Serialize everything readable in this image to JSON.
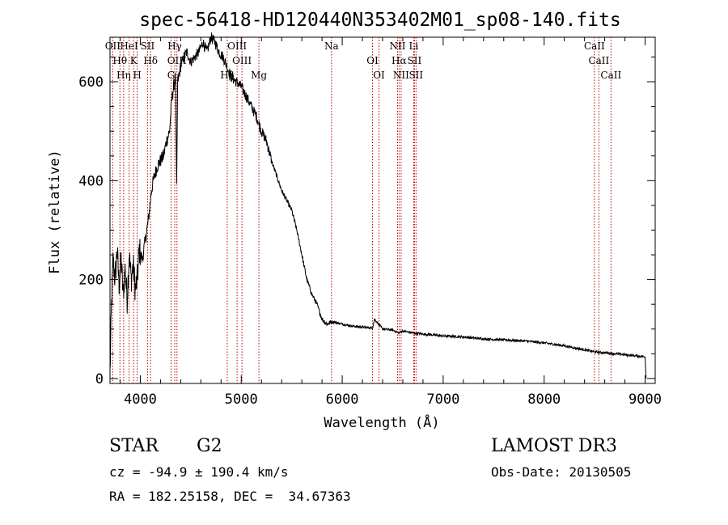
{
  "chart_data": {
    "type": "line",
    "title": "spec-56418-HD120440N353402M01_sp08-140.fits",
    "xlabel": "Wavelength (Å)",
    "ylabel": "Flux (relative)",
    "xlim": [
      3700,
      9100
    ],
    "ylim": [
      -10,
      690
    ],
    "xticks": [
      "4000",
      "5000",
      "6000",
      "7000",
      "8000",
      "9000"
    ],
    "xtick_values": [
      4000,
      5000,
      6000,
      7000,
      8000,
      9000
    ],
    "yticks": [
      "0",
      "200",
      "400",
      "600"
    ],
    "ytick_values": [
      0,
      200,
      400,
      600
    ],
    "series": [
      {
        "name": "flux",
        "x": [
          3700,
          3715,
          3730,
          3750,
          3770,
          3790,
          3810,
          3830,
          3850,
          3870,
          3890,
          3910,
          3930,
          3950,
          3970,
          3990,
          4020,
          4050,
          4080,
          4110,
          4140,
          4170,
          4200,
          4230,
          4260,
          4290,
          4310,
          4330,
          4350,
          4360,
          4370,
          4400,
          4430,
          4460,
          4500,
          4540,
          4580,
          4620,
          4660,
          4700,
          4740,
          4780,
          4820,
          4860,
          4900,
          4950,
          5000,
          5050,
          5100,
          5150,
          5200,
          5250,
          5300,
          5350,
          5400,
          5450,
          5500,
          5550,
          5600,
          5650,
          5700,
          5750,
          5800,
          5850,
          5900,
          6000,
          6100,
          6200,
          6300,
          6320,
          6400,
          6500,
          6560,
          6600,
          6700,
          6800,
          7000,
          7200,
          7400,
          7600,
          7800,
          8000,
          8200,
          8400,
          8500,
          8600,
          8700,
          8800,
          8900,
          9000,
          9010
        ],
        "y": [
          10,
          150,
          240,
          200,
          260,
          190,
          240,
          170,
          220,
          160,
          250,
          200,
          230,
          180,
          200,
          260,
          240,
          280,
          320,
          380,
          410,
          430,
          440,
          450,
          480,
          500,
          560,
          590,
          610,
          380,
          600,
          630,
          650,
          660,
          640,
          650,
          660,
          680,
          660,
          690,
          680,
          660,
          650,
          630,
          610,
          600,
          590,
          570,
          550,
          530,
          500,
          480,
          440,
          410,
          380,
          360,
          340,
          300,
          250,
          200,
          170,
          150,
          120,
          110,
          115,
          110,
          106,
          104,
          102,
          120,
          100,
          98,
          92,
          96,
          92,
          90,
          86,
          84,
          80,
          78,
          76,
          72,
          66,
          58,
          54,
          52,
          50,
          48,
          46,
          44,
          0
        ]
      }
    ],
    "lines": [
      {
        "label": "OII",
        "wavelength": 3727
      },
      {
        "label": "Hθ",
        "wavelength": 3798
      },
      {
        "label": "Hη",
        "wavelength": 3835
      },
      {
        "label": "HeI",
        "wavelength": 3889
      },
      {
        "label": "K",
        "wavelength": 3934
      },
      {
        "label": "H",
        "wavelength": 3969
      },
      {
        "label": "SII",
        "wavelength": 4072
      },
      {
        "label": "Hδ",
        "wavelength": 4102
      },
      {
        "label": "G",
        "wavelength": 4305
      },
      {
        "label": "Hγ",
        "wavelength": 4341
      },
      {
        "label": "OIII",
        "wavelength": 4363
      },
      {
        "label": "Hβ",
        "wavelength": 4861
      },
      {
        "label": "OIII",
        "wavelength": 4959
      },
      {
        "label": "OIII",
        "wavelength": 5007
      },
      {
        "label": "Mg",
        "wavelength": 5175
      },
      {
        "label": "Na",
        "wavelength": 5894
      },
      {
        "label": "OI",
        "wavelength": 6300
      },
      {
        "label": "OI",
        "wavelength": 6364
      },
      {
        "label": "NII",
        "wavelength": 6548
      },
      {
        "label": "Hα",
        "wavelength": 6563
      },
      {
        "label": "NII",
        "wavelength": 6583
      },
      {
        "label": "Li",
        "wavelength": 6708
      },
      {
        "label": "SII",
        "wavelength": 6716
      },
      {
        "label": "SII",
        "wavelength": 6731
      },
      {
        "label": "CaII",
        "wavelength": 8498
      },
      {
        "label": "CaII",
        "wavelength": 8542
      },
      {
        "label": "CaII",
        "wavelength": 8662
      }
    ],
    "line_color": "#c00000"
  },
  "info": {
    "class": "STAR",
    "subclass": "G2",
    "survey": "LAMOST DR3",
    "cz": "cz = -94.9 ± 190.4 km/s",
    "obs_date": "Obs-Date: 20130505",
    "radec": "RA = 182.25158, DEC =  34.67363"
  }
}
